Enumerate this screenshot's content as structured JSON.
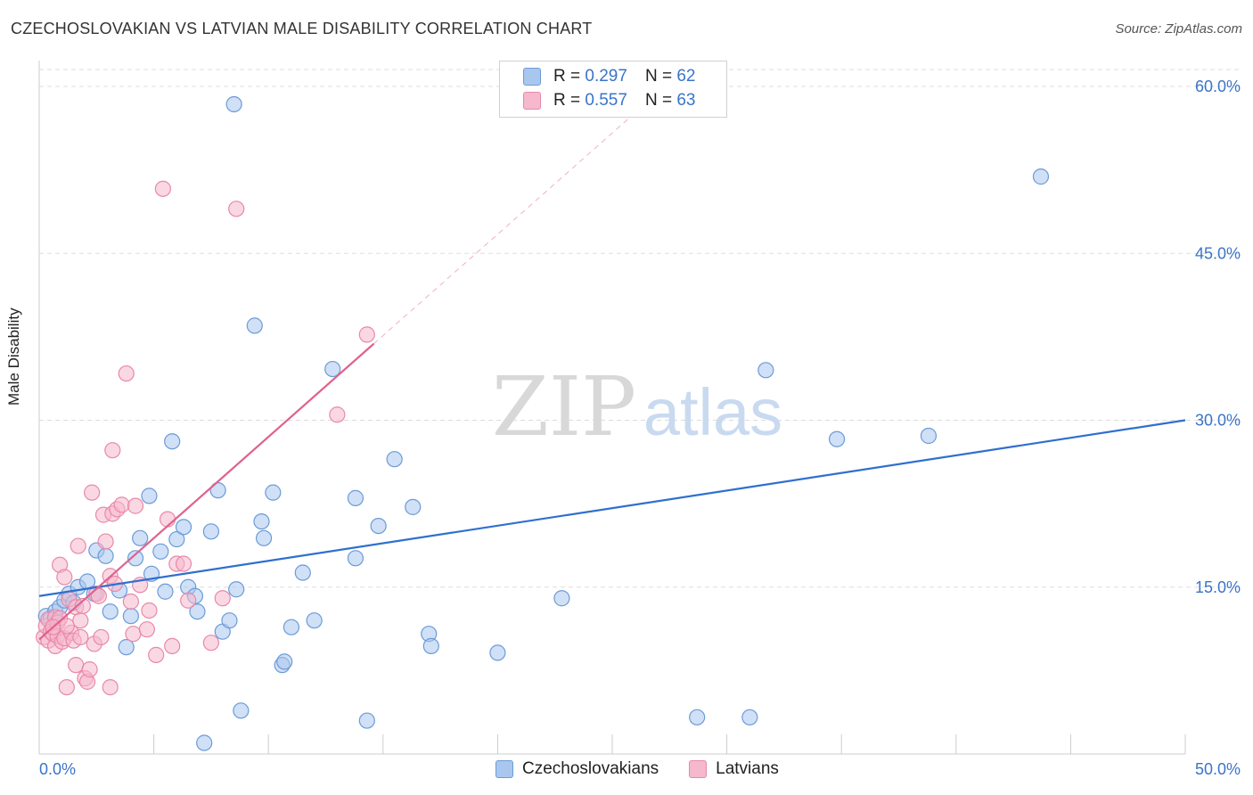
{
  "title": "CZECHOSLOVAKIAN VS LATVIAN MALE DISABILITY CORRELATION CHART",
  "source": "Source: ZipAtlas.com",
  "watermark": {
    "zip": "ZIP",
    "atlas": "atlas"
  },
  "legend": {
    "rows": [
      {
        "r_label": "R =",
        "r_value": "0.297",
        "n_label": "N =",
        "n_value": "62"
      },
      {
        "r_label": "R =",
        "r_value": "0.557",
        "n_label": "N =",
        "n_value": "63"
      }
    ]
  },
  "bottom_legend": {
    "series1": "Czechoslovakians",
    "series2": "Latvians"
  },
  "colors": {
    "blue_fill": "#a9c7ee",
    "blue_stroke": "#6b9bd8",
    "blue_line": "#2f6fcf",
    "pink_fill": "#f5b8cc",
    "pink_stroke": "#e889a8",
    "pink_line": "#e0628e",
    "tick_text": "#3a74c8",
    "grid": "#dddddd"
  },
  "chart_data": {
    "type": "scatter",
    "title": "CZECHOSLOVAKIAN VS LATVIAN MALE DISABILITY CORRELATION CHART",
    "xlabel": "",
    "ylabel": "Male Disability",
    "xlim": [
      0,
      50
    ],
    "ylim": [
      0,
      60
    ],
    "x_tick_labels": [
      "0.0%",
      "50.0%"
    ],
    "y_ticks": [
      15,
      30,
      45,
      60
    ],
    "y_tick_labels": [
      "15.0%",
      "30.0%",
      "45.0%",
      "60.0%"
    ],
    "series": [
      {
        "name": "Czechoslovakians",
        "r": 0.297,
        "n": 62,
        "trend": {
          "x0": 0,
          "y0": 14.2,
          "x1": 50,
          "y1": 30.0,
          "x_solid_end": 50
        },
        "points": [
          [
            0.3,
            12.4
          ],
          [
            0.5,
            12.2
          ],
          [
            0.7,
            12.8
          ],
          [
            0.9,
            13.2
          ],
          [
            1.1,
            13.8
          ],
          [
            1.3,
            14.4
          ],
          [
            1.5,
            13.6
          ],
          [
            1.7,
            15.0
          ],
          [
            2.1,
            15.5
          ],
          [
            2.4,
            14.4
          ],
          [
            2.5,
            18.3
          ],
          [
            2.9,
            17.8
          ],
          [
            3.1,
            12.8
          ],
          [
            3.5,
            14.7
          ],
          [
            3.8,
            9.6
          ],
          [
            4.0,
            12.4
          ],
          [
            4.2,
            17.6
          ],
          [
            4.4,
            19.4
          ],
          [
            4.8,
            23.2
          ],
          [
            4.9,
            16.2
          ],
          [
            5.3,
            18.2
          ],
          [
            5.5,
            14.6
          ],
          [
            5.8,
            28.1
          ],
          [
            6.0,
            19.3
          ],
          [
            6.3,
            20.4
          ],
          [
            6.5,
            15.0
          ],
          [
            6.8,
            14.2
          ],
          [
            6.9,
            12.8
          ],
          [
            7.2,
            1.0
          ],
          [
            7.5,
            20.0
          ],
          [
            7.8,
            23.7
          ],
          [
            8.0,
            11.0
          ],
          [
            8.3,
            12.0
          ],
          [
            8.6,
            14.8
          ],
          [
            8.8,
            3.9
          ],
          [
            9.4,
            38.5
          ],
          [
            9.7,
            20.9
          ],
          [
            9.8,
            19.4
          ],
          [
            10.2,
            23.5
          ],
          [
            10.6,
            8.0
          ],
          [
            10.7,
            8.3
          ],
          [
            11.0,
            11.4
          ],
          [
            11.5,
            16.3
          ],
          [
            12.0,
            12.0
          ],
          [
            12.8,
            34.6
          ],
          [
            13.8,
            23.0
          ],
          [
            13.8,
            17.6
          ],
          [
            14.3,
            3.0
          ],
          [
            14.8,
            20.5
          ],
          [
            15.5,
            26.5
          ],
          [
            16.3,
            22.2
          ],
          [
            17.0,
            10.8
          ],
          [
            17.1,
            9.7
          ],
          [
            20.0,
            9.1
          ],
          [
            22.8,
            14.0
          ],
          [
            28.7,
            3.3
          ],
          [
            31.0,
            3.3
          ],
          [
            31.7,
            34.5
          ],
          [
            34.8,
            28.3
          ],
          [
            38.8,
            28.6
          ],
          [
            43.7,
            51.9
          ],
          [
            8.5,
            58.4
          ]
        ]
      },
      {
        "name": "Latvians",
        "r": 0.557,
        "n": 63,
        "trend": {
          "x0": 0,
          "y0": 10.3,
          "x1": 27.3,
          "y1": 60.0,
          "x_solid_end": 14.6
        },
        "points": [
          [
            0.2,
            10.5
          ],
          [
            0.3,
            11.5
          ],
          [
            0.4,
            12.1
          ],
          [
            0.4,
            10.2
          ],
          [
            0.5,
            11.0
          ],
          [
            0.6,
            10.8
          ],
          [
            0.7,
            12.3
          ],
          [
            0.7,
            9.7
          ],
          [
            0.8,
            11.8
          ],
          [
            0.8,
            10.6
          ],
          [
            0.9,
            12.2
          ],
          [
            0.9,
            17.0
          ],
          [
            1.0,
            10.1
          ],
          [
            1.1,
            15.9
          ],
          [
            1.1,
            10.4
          ],
          [
            1.2,
            6.0
          ],
          [
            1.3,
            13.9
          ],
          [
            1.4,
            10.9
          ],
          [
            1.5,
            10.2
          ],
          [
            1.6,
            8.0
          ],
          [
            1.6,
            13.2
          ],
          [
            1.7,
            18.7
          ],
          [
            1.8,
            10.5
          ],
          [
            1.8,
            12.0
          ],
          [
            1.9,
            13.3
          ],
          [
            2.0,
            6.8
          ],
          [
            2.1,
            6.5
          ],
          [
            2.2,
            7.6
          ],
          [
            2.4,
            9.9
          ],
          [
            2.5,
            14.4
          ],
          [
            2.6,
            14.2
          ],
          [
            2.7,
            10.5
          ],
          [
            2.8,
            21.5
          ],
          [
            2.9,
            19.1
          ],
          [
            3.1,
            16.0
          ],
          [
            3.1,
            6.0
          ],
          [
            3.2,
            21.6
          ],
          [
            3.2,
            27.3
          ],
          [
            3.3,
            15.3
          ],
          [
            3.4,
            22.0
          ],
          [
            3.6,
            22.4
          ],
          [
            3.8,
            34.2
          ],
          [
            4.0,
            13.7
          ],
          [
            4.1,
            10.8
          ],
          [
            4.2,
            22.3
          ],
          [
            4.4,
            15.2
          ],
          [
            4.7,
            11.2
          ],
          [
            4.8,
            12.9
          ],
          [
            5.1,
            8.9
          ],
          [
            5.4,
            50.8
          ],
          [
            5.6,
            21.1
          ],
          [
            5.8,
            9.7
          ],
          [
            6.0,
            17.1
          ],
          [
            6.3,
            17.1
          ],
          [
            6.5,
            13.8
          ],
          [
            7.5,
            10.0
          ],
          [
            8.0,
            14.0
          ],
          [
            8.6,
            49.0
          ],
          [
            13.0,
            30.5
          ],
          [
            14.3,
            37.7
          ],
          [
            2.3,
            23.5
          ],
          [
            1.2,
            11.5
          ],
          [
            0.6,
            11.4
          ]
        ]
      }
    ]
  }
}
